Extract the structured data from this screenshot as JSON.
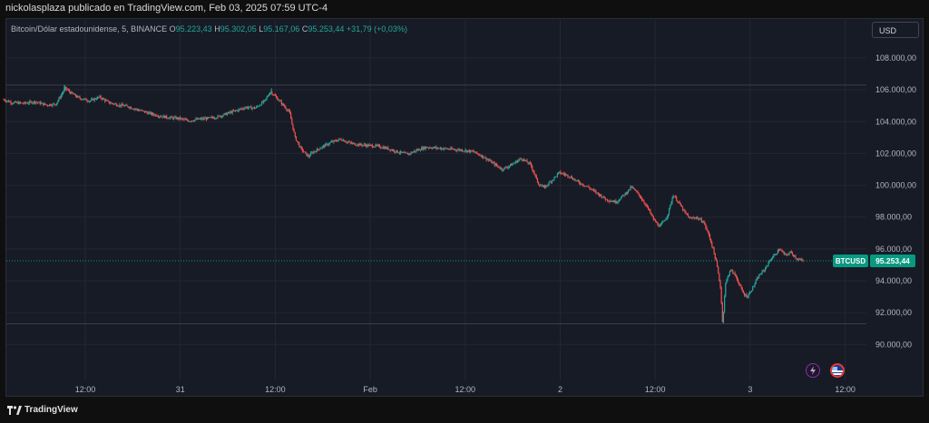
{
  "header": {
    "published_text": "nickolasplaza publicado en TradingView.com, Feb 03, 2025 07:59 UTC-4"
  },
  "legend": {
    "symbol_text": "Bitcoin/Dólar estadounidense, 5, BINANCE",
    "o_label": "O",
    "o_value": "95.223,43",
    "h_label": "H",
    "h_value": "95.302,05",
    "l_label": "L",
    "l_value": "95.167,06",
    "c_label": "C",
    "c_value": "95.253,44",
    "change": "+31,79 (+0,03%)"
  },
  "currency_button": "USD",
  "footer": {
    "brand": "TradingView"
  },
  "colors": {
    "up": "#26a69a",
    "down": "#ef5350",
    "price_tag": "#089981",
    "background": "#171b26",
    "grid": "#242733",
    "axis_text": "#b2b5be"
  },
  "icons": [
    "lightning-icon",
    "us-flag-icon",
    "tradingview-logo-icon"
  ],
  "chart_data": {
    "type": "candlestick",
    "symbol": "BTCUSD",
    "interval": "5",
    "exchange": "BINANCE",
    "currency": "USD",
    "last_price": 95253.44,
    "last_price_label": "95.253,44",
    "price_tag_symbol": "BTCUSD",
    "ylim": [
      89000,
      109500
    ],
    "y_ticks": [
      {
        "value": 90000,
        "label": "90.000,00"
      },
      {
        "value": 92000,
        "label": "92.000,00"
      },
      {
        "value": 94000,
        "label": "94.000,00"
      },
      {
        "value": 96000,
        "label": "96.000,00"
      },
      {
        "value": 98000,
        "label": "98.000,00"
      },
      {
        "value": 100000,
        "label": "100.000,00"
      },
      {
        "value": 102000,
        "label": "102.000,00"
      },
      {
        "value": 104000,
        "label": "104.000,00"
      },
      {
        "value": 106000,
        "label": "106.000,00"
      },
      {
        "value": 108000,
        "label": "108.000,00"
      }
    ],
    "x_ticks": [
      {
        "t": 5.0,
        "label": "12:00"
      },
      {
        "t": 10.0,
        "label": "31"
      },
      {
        "t": 15.0,
        "label": "12:00"
      },
      {
        "t": 20.0,
        "label": "Feb"
      },
      {
        "t": 25.0,
        "label": "12:00"
      },
      {
        "t": 30.0,
        "label": "2"
      },
      {
        "t": 35.0,
        "label": "12:00"
      },
      {
        "t": 40.0,
        "label": "3"
      },
      {
        "t": 45.0,
        "label": "12:00"
      }
    ],
    "xlim": [
      0.7,
      48.4
    ],
    "reference_lines": [
      106300,
      91300
    ],
    "series": [
      {
        "name": "BTCUSD",
        "path": [
          [
            0.7,
            105400
          ],
          [
            1.2,
            105200
          ],
          [
            1.8,
            105150
          ],
          [
            2.4,
            105250
          ],
          [
            3.0,
            105050
          ],
          [
            3.5,
            105100
          ],
          [
            3.8,
            105700
          ],
          [
            4.0,
            106100
          ],
          [
            4.3,
            105800
          ],
          [
            4.7,
            105500
          ],
          [
            5.3,
            105300
          ],
          [
            5.8,
            105550
          ],
          [
            6.3,
            105200
          ],
          [
            6.8,
            105050
          ],
          [
            7.3,
            104950
          ],
          [
            7.8,
            104750
          ],
          [
            8.5,
            104500
          ],
          [
            9.0,
            104350
          ],
          [
            9.5,
            104250
          ],
          [
            10.0,
            104200
          ],
          [
            10.5,
            104050
          ],
          [
            11.0,
            104150
          ],
          [
            11.5,
            104200
          ],
          [
            12.0,
            104300
          ],
          [
            12.5,
            104500
          ],
          [
            13.0,
            104700
          ],
          [
            13.5,
            104900
          ],
          [
            14.0,
            104850
          ],
          [
            14.5,
            105300
          ],
          [
            14.8,
            105900
          ],
          [
            15.2,
            105400
          ],
          [
            15.5,
            105000
          ],
          [
            15.8,
            104600
          ],
          [
            16.1,
            103000
          ],
          [
            16.4,
            102300
          ],
          [
            16.8,
            101800
          ],
          [
            17.0,
            102050
          ],
          [
            17.5,
            102400
          ],
          [
            18.0,
            102700
          ],
          [
            18.5,
            102900
          ],
          [
            19.0,
            102650
          ],
          [
            19.5,
            102550
          ],
          [
            20.0,
            102500
          ],
          [
            20.5,
            102450
          ],
          [
            21.0,
            102300
          ],
          [
            21.5,
            102100
          ],
          [
            22.0,
            101950
          ],
          [
            22.5,
            102200
          ],
          [
            23.0,
            102400
          ],
          [
            23.5,
            102350
          ],
          [
            24.0,
            102300
          ],
          [
            24.5,
            102250
          ],
          [
            25.0,
            102200
          ],
          [
            25.5,
            102100
          ],
          [
            26.0,
            101800
          ],
          [
            26.5,
            101400
          ],
          [
            27.0,
            101000
          ],
          [
            27.5,
            101300
          ],
          [
            28.0,
            101700
          ],
          [
            28.5,
            101300
          ],
          [
            28.9,
            100100
          ],
          [
            29.2,
            99850
          ],
          [
            29.6,
            100300
          ],
          [
            30.0,
            100800
          ],
          [
            30.5,
            100600
          ],
          [
            31.0,
            100200
          ],
          [
            31.5,
            99900
          ],
          [
            32.0,
            99500
          ],
          [
            32.5,
            99100
          ],
          [
            33.0,
            98950
          ],
          [
            33.5,
            99500
          ],
          [
            33.8,
            99900
          ],
          [
            34.2,
            99400
          ],
          [
            34.6,
            98700
          ],
          [
            35.0,
            97800
          ],
          [
            35.3,
            97400
          ],
          [
            35.7,
            98100
          ],
          [
            36.0,
            99400
          ],
          [
            36.3,
            98900
          ],
          [
            36.6,
            98300
          ],
          [
            36.9,
            97900
          ],
          [
            37.2,
            98000
          ],
          [
            37.6,
            97700
          ],
          [
            37.9,
            96800
          ],
          [
            38.1,
            96000
          ],
          [
            38.3,
            95000
          ],
          [
            38.5,
            93500
          ],
          [
            38.6,
            91300
          ],
          [
            38.75,
            93800
          ],
          [
            39.0,
            94700
          ],
          [
            39.3,
            94300
          ],
          [
            39.5,
            93700
          ],
          [
            39.7,
            93200
          ],
          [
            39.9,
            93000
          ],
          [
            40.2,
            93600
          ],
          [
            40.5,
            94300
          ],
          [
            40.8,
            94700
          ],
          [
            41.1,
            95300
          ],
          [
            41.4,
            95700
          ],
          [
            41.6,
            96000
          ],
          [
            41.9,
            95600
          ],
          [
            42.2,
            95800
          ],
          [
            42.5,
            95400
          ],
          [
            42.8,
            95250
          ]
        ]
      }
    ]
  }
}
